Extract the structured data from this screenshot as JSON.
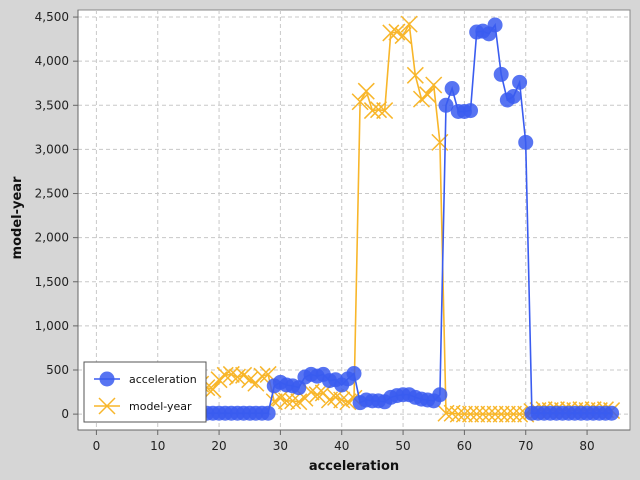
{
  "chart_data": {
    "type": "line",
    "xlabel": "acceleration",
    "ylabel": "model-year",
    "xlim": [
      -3,
      87
    ],
    "ylim": [
      -180,
      4580
    ],
    "xticks": [
      0,
      10,
      20,
      30,
      40,
      50,
      60,
      70,
      80
    ],
    "yticks": [
      0,
      500,
      1000,
      1500,
      2000,
      2500,
      3000,
      3500,
      4000,
      4500
    ],
    "ytick_labels": [
      "0",
      "500",
      "1,000",
      "1,500",
      "2,000",
      "2,500",
      "3,000",
      "3,500",
      "4,000",
      "4,500"
    ],
    "grid": true,
    "legend_position": "bottom-left",
    "series": [
      {
        "name": "acceleration",
        "color": "#3a5cf0",
        "marker": "circle",
        "points": [
          [
            10,
            10
          ],
          [
            11,
            10
          ],
          [
            12,
            10
          ],
          [
            13,
            10
          ],
          [
            14,
            10
          ],
          [
            15,
            10
          ],
          [
            16,
            10
          ],
          [
            17,
            10
          ],
          [
            18,
            10
          ],
          [
            19,
            10
          ],
          [
            20,
            10
          ],
          [
            21,
            10
          ],
          [
            22,
            10
          ],
          [
            23,
            10
          ],
          [
            24,
            10
          ],
          [
            25,
            10
          ],
          [
            26,
            10
          ],
          [
            27,
            10
          ],
          [
            28,
            10
          ],
          [
            29,
            320
          ],
          [
            30,
            360
          ],
          [
            31,
            330
          ],
          [
            32,
            320
          ],
          [
            33,
            300
          ],
          [
            34,
            420
          ],
          [
            35,
            450
          ],
          [
            36,
            430
          ],
          [
            37,
            450
          ],
          [
            38,
            380
          ],
          [
            39,
            390
          ],
          [
            40,
            330
          ],
          [
            41,
            400
          ],
          [
            42,
            460
          ],
          [
            43,
            130
          ],
          [
            44,
            160
          ],
          [
            45,
            150
          ],
          [
            46,
            150
          ],
          [
            47,
            140
          ],
          [
            48,
            190
          ],
          [
            49,
            210
          ],
          [
            50,
            220
          ],
          [
            51,
            220
          ],
          [
            52,
            190
          ],
          [
            53,
            170
          ],
          [
            54,
            160
          ],
          [
            55,
            150
          ],
          [
            56,
            220
          ],
          [
            57,
            3500
          ],
          [
            58,
            3690
          ],
          [
            59,
            3430
          ],
          [
            60,
            3430
          ],
          [
            61,
            3440
          ],
          [
            62,
            4330
          ],
          [
            63,
            4340
          ],
          [
            64,
            4310
          ],
          [
            65,
            4410
          ],
          [
            66,
            3850
          ],
          [
            67,
            3560
          ],
          [
            68,
            3600
          ],
          [
            69,
            3760
          ],
          [
            70,
            3080
          ],
          [
            71,
            10
          ],
          [
            72,
            10
          ],
          [
            73,
            10
          ],
          [
            74,
            10
          ],
          [
            75,
            10
          ],
          [
            76,
            10
          ],
          [
            77,
            10
          ],
          [
            78,
            10
          ],
          [
            79,
            10
          ],
          [
            80,
            10
          ],
          [
            81,
            10
          ],
          [
            82,
            10
          ],
          [
            83,
            10
          ],
          [
            84,
            10
          ]
        ]
      },
      {
        "name": "model-year",
        "color": "#f8b62a",
        "marker": "x",
        "points": [
          [
            10,
            330
          ],
          [
            11,
            340
          ],
          [
            12,
            350
          ],
          [
            13,
            330
          ],
          [
            14,
            310
          ],
          [
            15,
            370
          ],
          [
            16,
            320
          ],
          [
            17,
            340
          ],
          [
            18,
            300
          ],
          [
            19,
            280
          ],
          [
            20,
            390
          ],
          [
            21,
            440
          ],
          [
            22,
            450
          ],
          [
            23,
            420
          ],
          [
            24,
            440
          ],
          [
            25,
            390
          ],
          [
            26,
            350
          ],
          [
            27,
            430
          ],
          [
            28,
            450
          ],
          [
            29,
            140
          ],
          [
            30,
            180
          ],
          [
            31,
            150
          ],
          [
            32,
            150
          ],
          [
            33,
            140
          ],
          [
            34,
            180
          ],
          [
            35,
            250
          ],
          [
            36,
            220
          ],
          [
            37,
            240
          ],
          [
            38,
            160
          ],
          [
            39,
            190
          ],
          [
            40,
            160
          ],
          [
            41,
            140
          ],
          [
            42,
            180
          ],
          [
            43,
            3540
          ],
          [
            44,
            3660
          ],
          [
            45,
            3440
          ],
          [
            46,
            3450
          ],
          [
            47,
            3440
          ],
          [
            48,
            4320
          ],
          [
            49,
            4330
          ],
          [
            50,
            4290
          ],
          [
            51,
            4420
          ],
          [
            52,
            3840
          ],
          [
            53,
            3570
          ],
          [
            54,
            3620
          ],
          [
            55,
            3730
          ],
          [
            56,
            3080
          ],
          [
            57,
            10
          ],
          [
            58,
            10
          ],
          [
            59,
            0
          ],
          [
            60,
            0
          ],
          [
            61,
            0
          ],
          [
            62,
            0
          ],
          [
            63,
            0
          ],
          [
            64,
            0
          ],
          [
            65,
            0
          ],
          [
            66,
            0
          ],
          [
            67,
            0
          ],
          [
            68,
            0
          ],
          [
            69,
            0
          ],
          [
            70,
            0
          ],
          [
            71,
            30
          ],
          [
            72,
            40
          ],
          [
            73,
            50
          ],
          [
            74,
            40
          ],
          [
            75,
            50
          ],
          [
            76,
            40
          ],
          [
            77,
            50
          ],
          [
            78,
            40
          ],
          [
            79,
            50
          ],
          [
            80,
            40
          ],
          [
            81,
            50
          ],
          [
            82,
            40
          ],
          [
            83,
            50
          ],
          [
            84,
            40
          ]
        ]
      }
    ]
  }
}
